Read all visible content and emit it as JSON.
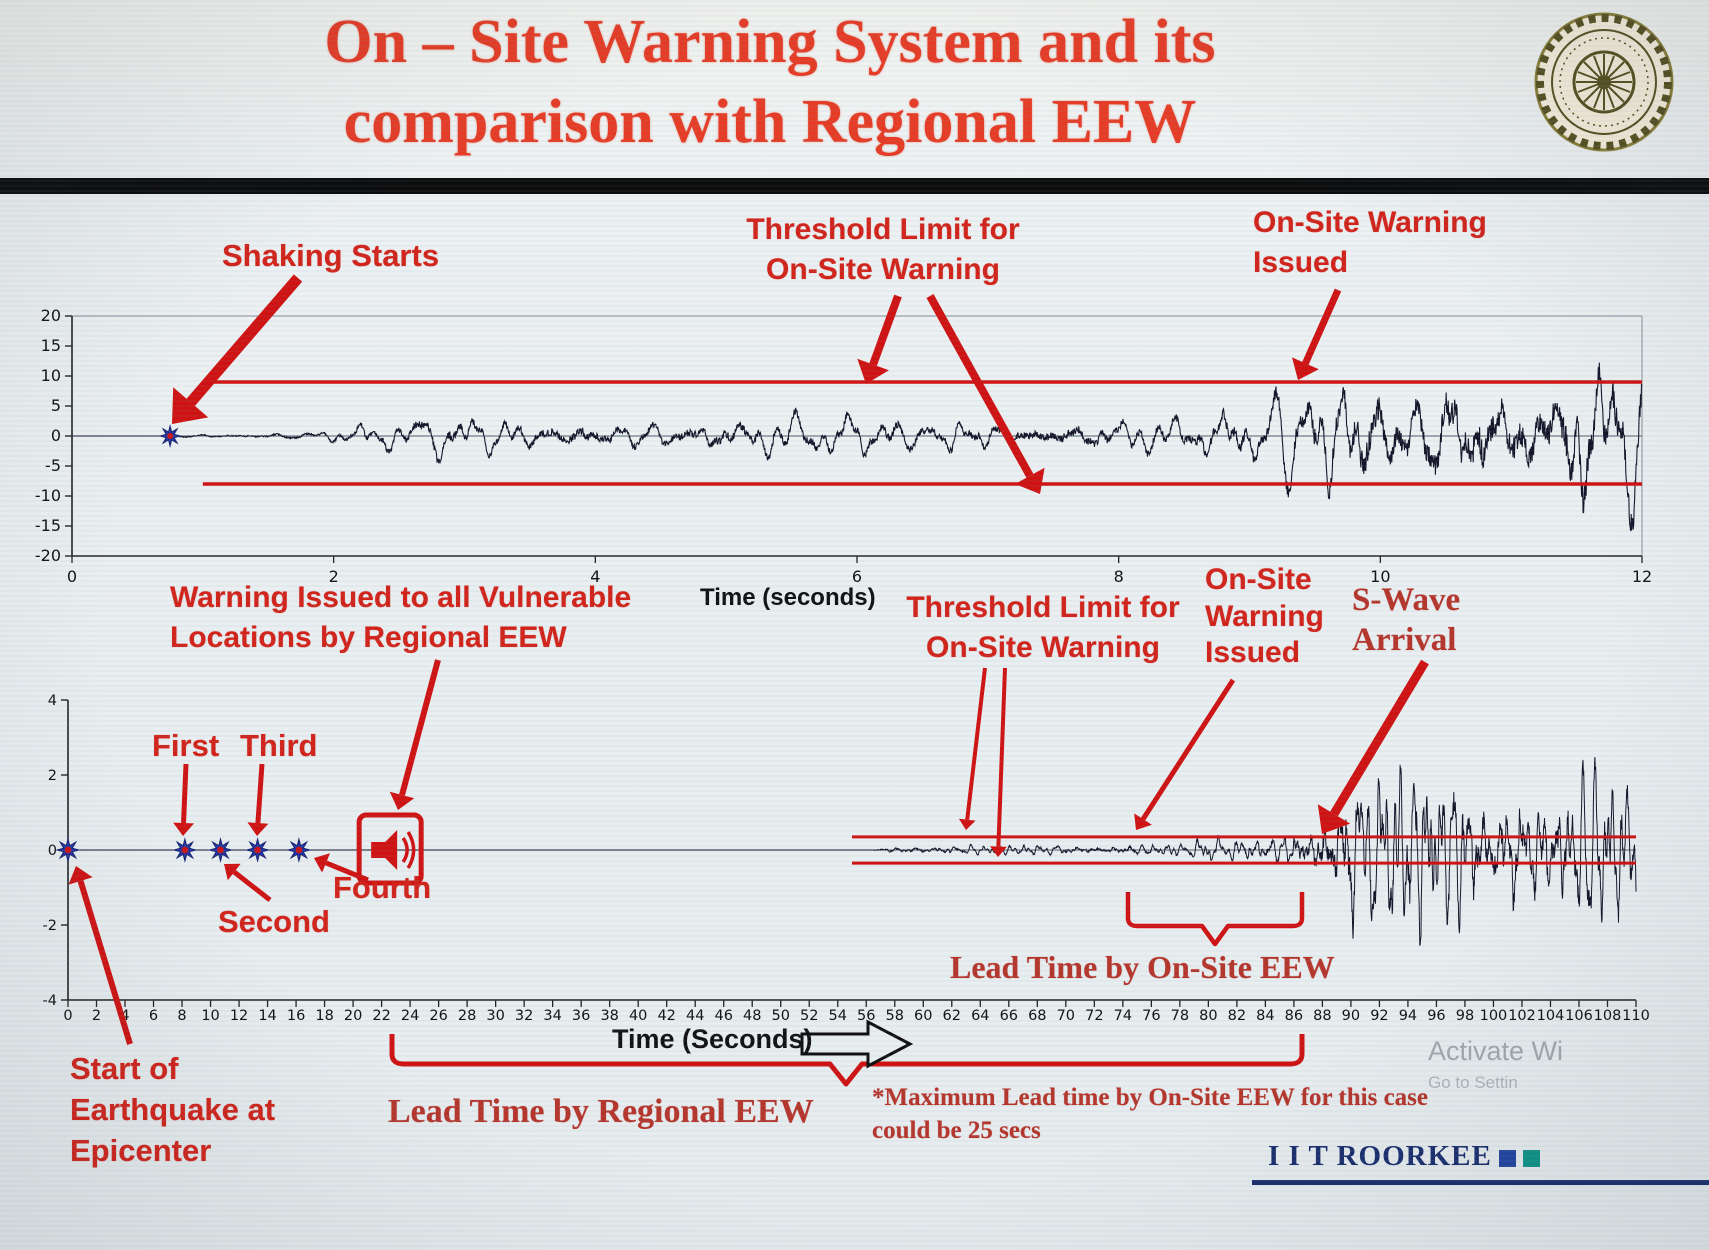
{
  "title": {
    "line1": "On – Site Warning System and its",
    "line2": "comparison with Regional EEW"
  },
  "colors": {
    "title_red": "#e63c25",
    "annotation_red": "#d2231a",
    "serif_maroon": "#b5352b",
    "threshold_red": "#cf1212",
    "trace_dark": "#141428",
    "brand_navy": "#1b2e6e",
    "marker_blue": "#2636a8",
    "marker_center_red": "#cc1414"
  },
  "annotations": {
    "shaking_starts": "Shaking Starts",
    "threshold_top": "Threshold Limit for\nOn-Site Warning",
    "onsite_warning_top": "On-Site Warning\nIssued",
    "regional_warning": "Warning Issued to all Vulnerable\nLocations by Regional EEW",
    "threshold_bottom": "Threshold Limit for\nOn-Site Warning",
    "onsite_warning_bottom": "On-Site\nWarning\nIssued",
    "s_wave": "S-Wave\nArrival",
    "first": "First",
    "second": "Second",
    "third": "Third",
    "fourth": "Fourth",
    "lead_onsite": "Lead Time by On-Site EEW",
    "lead_regional": "Lead Time by Regional EEW",
    "start_epicenter": "Start of\nEarthquake at\nEpicenter",
    "max_lead_note": "*Maximum Lead time by On-Site EEW for this case\ncould be 25 secs"
  },
  "footer": {
    "brand": "I I T ROORKEE",
    "watermark_line1": "Activate Wi",
    "watermark_line2": "Go to Settin"
  },
  "chart_data": [
    {
      "type": "line",
      "description": "On-site station accelerogram: warning issued when shaking crosses threshold",
      "xlabel": "Time (seconds)",
      "xlim": [
        0,
        12
      ],
      "xticks": [
        0,
        2,
        4,
        6,
        8,
        10,
        12
      ],
      "ylim": [
        -20,
        20
      ],
      "yticks": [
        20,
        15,
        10,
        5,
        0,
        -5,
        -10,
        -15,
        -20
      ],
      "grid": false,
      "box": true,
      "tick_font": 16,
      "tick_dy": 26,
      "trace_color": "#141428",
      "trace_width": 1.1,
      "threshold": {
        "upper": 9,
        "lower": -8,
        "start_time": 1,
        "end_time": 12,
        "line_width": 3.5,
        "color": "#cf1212"
      },
      "events": {
        "shaking_starts_t": 0.75,
        "onsite_warning_issued_t": 9.35
      },
      "markers": [
        {
          "type": "star",
          "t": 0.75,
          "v": 0,
          "r": 10
        }
      ],
      "synthesis": {
        "envelope": [
          [
            0,
            0
          ],
          [
            0.72,
            0
          ],
          [
            0.78,
            0.5
          ],
          [
            1.4,
            0.7
          ],
          [
            2.0,
            1.1
          ],
          [
            2.4,
            3.2
          ],
          [
            2.8,
            4.8
          ],
          [
            3.3,
            3.2
          ],
          [
            3.9,
            4.4
          ],
          [
            4.5,
            3.4
          ],
          [
            5.1,
            4.6
          ],
          [
            5.8,
            3.6
          ],
          [
            6.4,
            4.2
          ],
          [
            7.0,
            3.5
          ],
          [
            7.6,
            4.3
          ],
          [
            8.2,
            3.8
          ],
          [
            8.7,
            4.8
          ],
          [
            9.1,
            6.5
          ],
          [
            9.5,
            10
          ],
          [
            9.9,
            13.5
          ],
          [
            10.3,
            11
          ],
          [
            10.7,
            15.5
          ],
          [
            11.1,
            12.5
          ],
          [
            11.5,
            16
          ],
          [
            12,
            13.5
          ]
        ],
        "freqs": [
          3.1,
          5.9,
          9.7
        ],
        "weights": [
          0.46,
          0.32,
          0.22
        ],
        "modfreq": 0.31,
        "jitter": 0.3,
        "samples": 3200
      }
    },
    {
      "type": "line",
      "description": "Record at vulnerable site: Regional EEW vs On-Site EEW lead times",
      "xlabel": "Time (Seconds)",
      "xlim": [
        0,
        110
      ],
      "xticks_range": [
        0,
        110,
        2
      ],
      "ylim": [
        -4,
        4
      ],
      "yticks": [
        4,
        2,
        0,
        -2,
        -4
      ],
      "grid": false,
      "box": false,
      "tick_font": 14.5,
      "tick_dy": 20,
      "trace_color": "#141428",
      "trace_width": 1,
      "threshold": {
        "upper": 0.35,
        "lower": -0.35,
        "start_time": 55,
        "end_time": 110,
        "line_width": 3,
        "color": "#cf1212"
      },
      "events": {
        "earthquake_start_t": 0,
        "p_wave_detections": [
          {
            "label": "First",
            "t": 8.2
          },
          {
            "label": "Second",
            "t": 10.7
          },
          {
            "label": "Third",
            "t": 13.3
          },
          {
            "label": "Fourth",
            "t": 16.2
          }
        ],
        "regional_warning_issued_t": 22.6,
        "onsite_warning_issued_t": 74.7,
        "s_wave_arrival_t": 87.9,
        "max_onsite_lead_secs": 25
      },
      "markers": [
        {
          "type": "star",
          "t": 0,
          "v": 0,
          "r": 11
        },
        {
          "type": "star",
          "t": 8.2,
          "v": 0,
          "r": 11
        },
        {
          "type": "star",
          "t": 10.7,
          "v": 0,
          "r": 11
        },
        {
          "type": "star",
          "t": 13.3,
          "v": 0,
          "r": 11
        },
        {
          "type": "star",
          "t": 16.2,
          "v": 0,
          "r": 11
        },
        {
          "type": "alert-icon",
          "t": 22.6,
          "v": 0
        }
      ],
      "synthesis": {
        "envelope": [
          [
            0,
            0
          ],
          [
            56.5,
            0
          ],
          [
            57,
            0.1
          ],
          [
            60,
            0.16
          ],
          [
            64,
            0.13
          ],
          [
            68,
            0.17
          ],
          [
            72,
            0.16
          ],
          [
            76,
            0.2
          ],
          [
            80,
            0.28
          ],
          [
            83,
            0.4
          ],
          [
            85,
            0.55
          ],
          [
            87,
            1.0
          ],
          [
            88.5,
            2.2
          ],
          [
            90,
            2.9
          ],
          [
            92,
            2.3
          ],
          [
            94,
            3.0
          ],
          [
            96,
            2.5
          ],
          [
            98,
            2.9
          ],
          [
            100,
            2.4
          ],
          [
            102,
            2.8
          ],
          [
            104,
            2.1
          ],
          [
            106,
            2.3
          ],
          [
            108,
            1.9
          ],
          [
            110,
            2.0
          ]
        ],
        "freqs": [
          0.9,
          1.7,
          2.9
        ],
        "weights": [
          0.45,
          0.33,
          0.25
        ],
        "modfreq": 0.07,
        "jitter": 0.25,
        "samples": 4200
      }
    }
  ]
}
